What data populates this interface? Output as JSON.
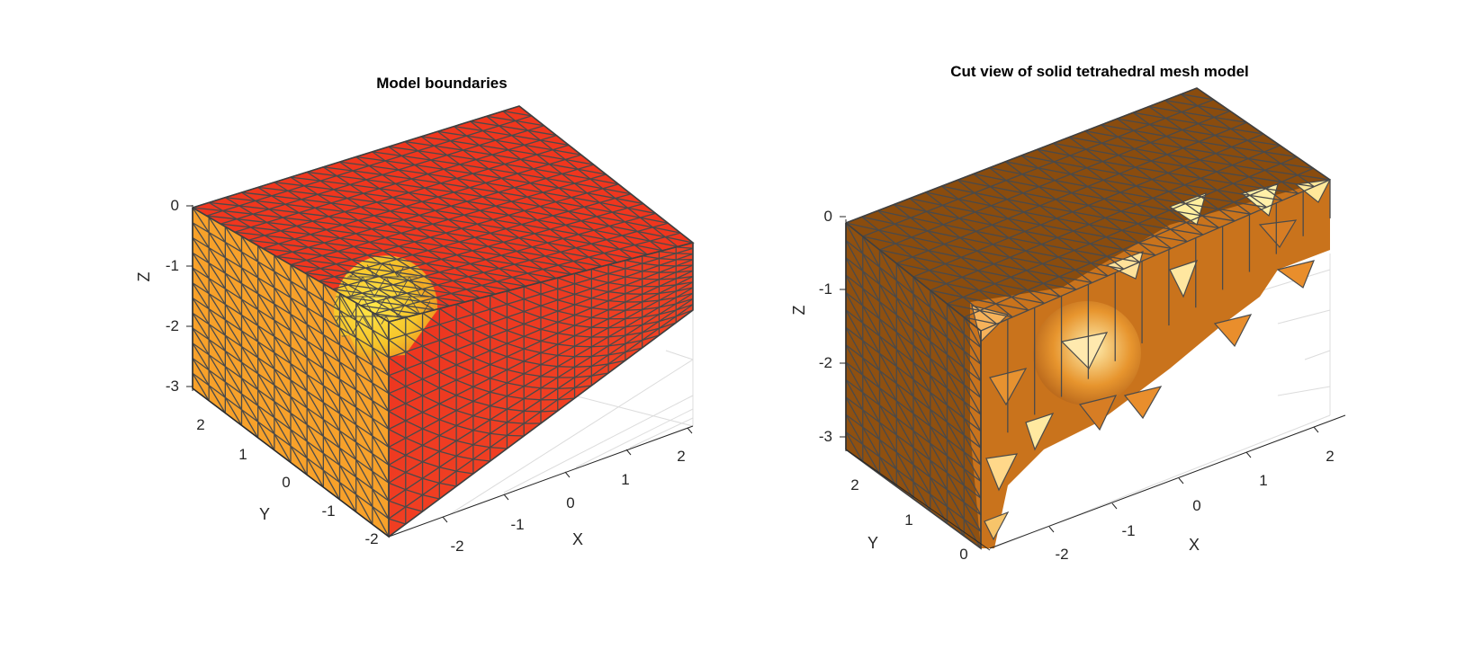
{
  "chart_data": [
    {
      "type": "3d-mesh",
      "title": "Model boundaries",
      "xlabel": "X",
      "ylabel": "Y",
      "zlabel": "Z",
      "x_ticks": [
        "-2",
        "-1",
        "0",
        "1",
        "2"
      ],
      "y_ticks": [
        "-2",
        "-1",
        "0",
        "1",
        "2"
      ],
      "z_ticks": [
        "0",
        "-1",
        "-2",
        "-3"
      ],
      "xlim": [
        -2.5,
        2.5
      ],
      "ylim": [
        -2.5,
        2.5
      ],
      "zlim": [
        -3.2,
        0
      ],
      "colors": {
        "top": "#f0361e",
        "front": "#f7a12a",
        "side": "#ef3a22",
        "sphere": "#ffd23a"
      },
      "grid": true
    },
    {
      "type": "3d-mesh",
      "title": "Cut view of solid tetrahedral mesh model",
      "xlabel": "X",
      "ylabel": "Y",
      "zlabel": "Z",
      "x_ticks": [
        "-2",
        "-1",
        "0",
        "1",
        "2"
      ],
      "y_ticks": [
        "0",
        "1",
        "2"
      ],
      "z_ticks": [
        "0",
        "-1",
        "-2",
        "-3"
      ],
      "xlim": [
        -2.5,
        2.5
      ],
      "ylim": [
        0,
        2.5
      ],
      "zlim": [
        -3.2,
        0
      ],
      "colors": {
        "top": "#8a4c0e",
        "front": "#8f5010",
        "cut": "#c9731c",
        "highlight": "#ffe9a0",
        "sphere": "#e08a2a"
      },
      "grid": true
    }
  ]
}
